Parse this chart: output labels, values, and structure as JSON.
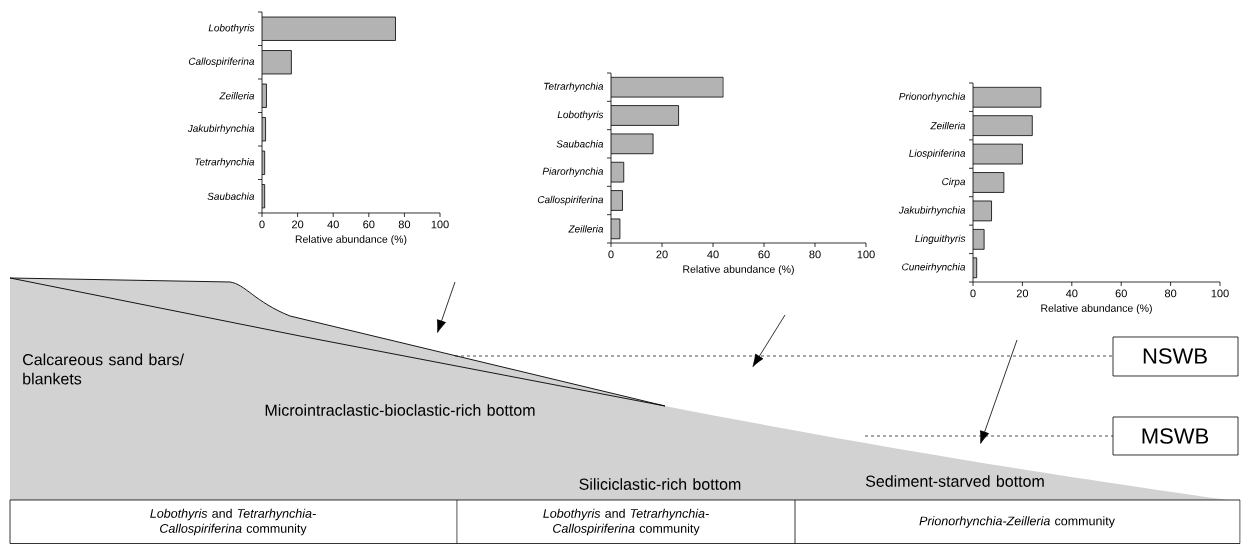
{
  "chart_data": [
    {
      "type": "bar",
      "orientation": "horizontal",
      "categories": [
        "Lobothyris",
        "Callospiriferina",
        "Zeilleria",
        "Jakubirhynchia",
        "Tetrarhynchia",
        "Saubachia"
      ],
      "values": [
        75,
        16.5,
        2.5,
        2,
        1.5,
        1.5
      ],
      "color": "#b3b3b3",
      "xlabel": "Relative abundance (%)",
      "xlim": [
        0,
        100
      ],
      "xticks": [
        0,
        20,
        40,
        60,
        80,
        100
      ]
    },
    {
      "type": "bar",
      "orientation": "horizontal",
      "categories": [
        "Tetrarhynchia",
        "Lobothyris",
        "Saubachia",
        "Piarorhynchia",
        "Callospiriferina",
        "Zeilleria"
      ],
      "values": [
        44,
        26.5,
        16.5,
        5,
        4.5,
        3.5
      ],
      "color": "#b3b3b3",
      "xlabel": "Relative abundance (%)",
      "xlim": [
        0,
        100
      ],
      "xticks": [
        0,
        20,
        40,
        60,
        80,
        100
      ]
    },
    {
      "type": "bar",
      "orientation": "horizontal",
      "categories": [
        "Prionorhynchia",
        "Zeilleria",
        "Liospiriferina",
        "Cirpa",
        "Jakubirhynchia",
        "Linguithyris",
        "Cuneirhynchia"
      ],
      "values": [
        27.5,
        24,
        20,
        12.5,
        7.5,
        4.5,
        1.5
      ],
      "color": "#b3b3b3",
      "xlabel": "Relative abundance (%)",
      "xlim": [
        0,
        100
      ],
      "xticks": [
        0,
        20,
        40,
        60,
        80,
        100
      ]
    },
    {
      "type": "other",
      "annotations": [
        "Calcareous sand bars/ blankets",
        "Microintraclastic-bioclastic-rich bottom",
        "Siliciclastic-rich bottom",
        "Sediment-starved bottom",
        "NSWB",
        "MSWB",
        "*Lobothyris* and *Tetrarhynchia-Callospiriferina* community",
        "*Lobothyris* and *Tetrarhynchia-Callospiriferina* community",
        "*Prionorhynchia-Zeilleria* community"
      ]
    }
  ]
}
